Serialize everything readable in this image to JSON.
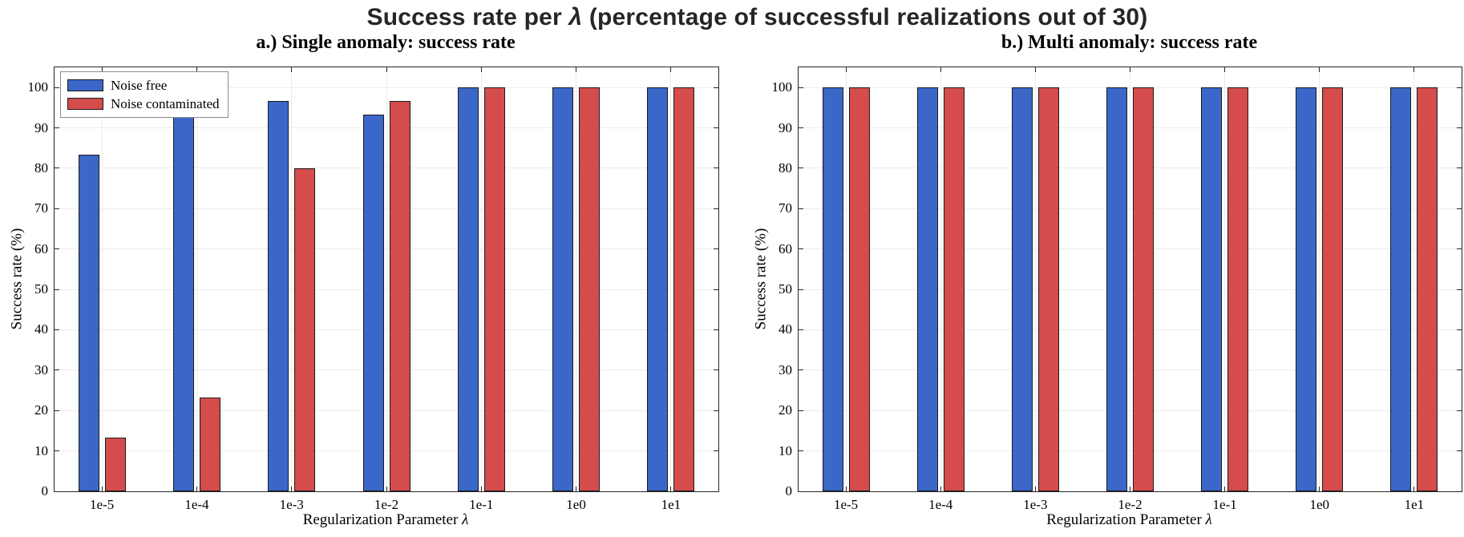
{
  "figure_title": "Success rate per λ (percentage of successful realizations out of 30)",
  "chart_data": [
    {
      "type": "bar",
      "title": "a.) Single anomaly: success rate",
      "xlabel": "Regularization Parameter λ",
      "ylabel": "Success rate (%)",
      "categories": [
        "1e-5",
        "1e-4",
        "1e-3",
        "1e-2",
        "1e-1",
        "1e0",
        "1e1"
      ],
      "series": [
        {
          "name": "Noise free",
          "color": "#3B67C8",
          "values": [
            83.3,
            93.3,
            96.7,
            93.3,
            100,
            100,
            100
          ]
        },
        {
          "name": "Noise contaminated",
          "color": "#D54C4C",
          "values": [
            13.3,
            23.3,
            80,
            96.7,
            100,
            100,
            100
          ]
        }
      ],
      "ylim": [
        0,
        105
      ],
      "yticks": [
        0,
        10,
        20,
        30,
        40,
        50,
        60,
        70,
        80,
        90,
        100
      ],
      "grid": true,
      "legend_position": "top-left"
    },
    {
      "type": "bar",
      "title": "b.) Multi anomaly: success rate",
      "xlabel": "Regularization Parameter λ",
      "ylabel": "Success rate (%)",
      "categories": [
        "1e-5",
        "1e-4",
        "1e-3",
        "1e-2",
        "1e-1",
        "1e0",
        "1e1"
      ],
      "series": [
        {
          "name": "Noise free",
          "color": "#3B67C8",
          "values": [
            100,
            100,
            100,
            100,
            100,
            100,
            100
          ]
        },
        {
          "name": "Noise contaminated",
          "color": "#D54C4C",
          "values": [
            100,
            100,
            100,
            100,
            100,
            100,
            100
          ]
        }
      ],
      "ylim": [
        0,
        105
      ],
      "yticks": [
        0,
        10,
        20,
        30,
        40,
        50,
        60,
        70,
        80,
        90,
        100
      ],
      "grid": true,
      "legend_position": "none"
    }
  ],
  "styles": {
    "bar_edge": "#1a1a1a",
    "grid_color": "#ebebeb",
    "axes_color": "#262626",
    "background": "#ffffff"
  }
}
